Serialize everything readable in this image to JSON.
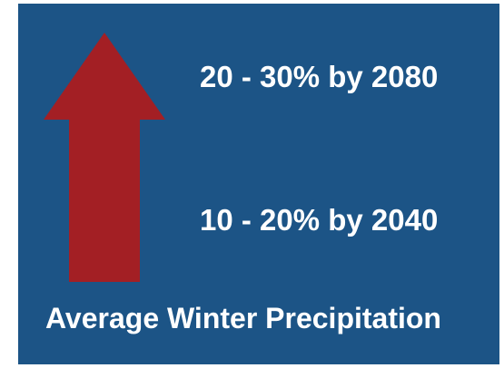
{
  "colors": {
    "panel_background": "#1c5486",
    "arrow": "#a31f24",
    "text": "#ffffff"
  },
  "arrow": {
    "icon": "up-arrow-icon",
    "direction": "up"
  },
  "labels": {
    "upper": "20 - 30% by 2080",
    "lower": "10 - 20% by 2040",
    "caption": "Average Winter Precipitation"
  }
}
